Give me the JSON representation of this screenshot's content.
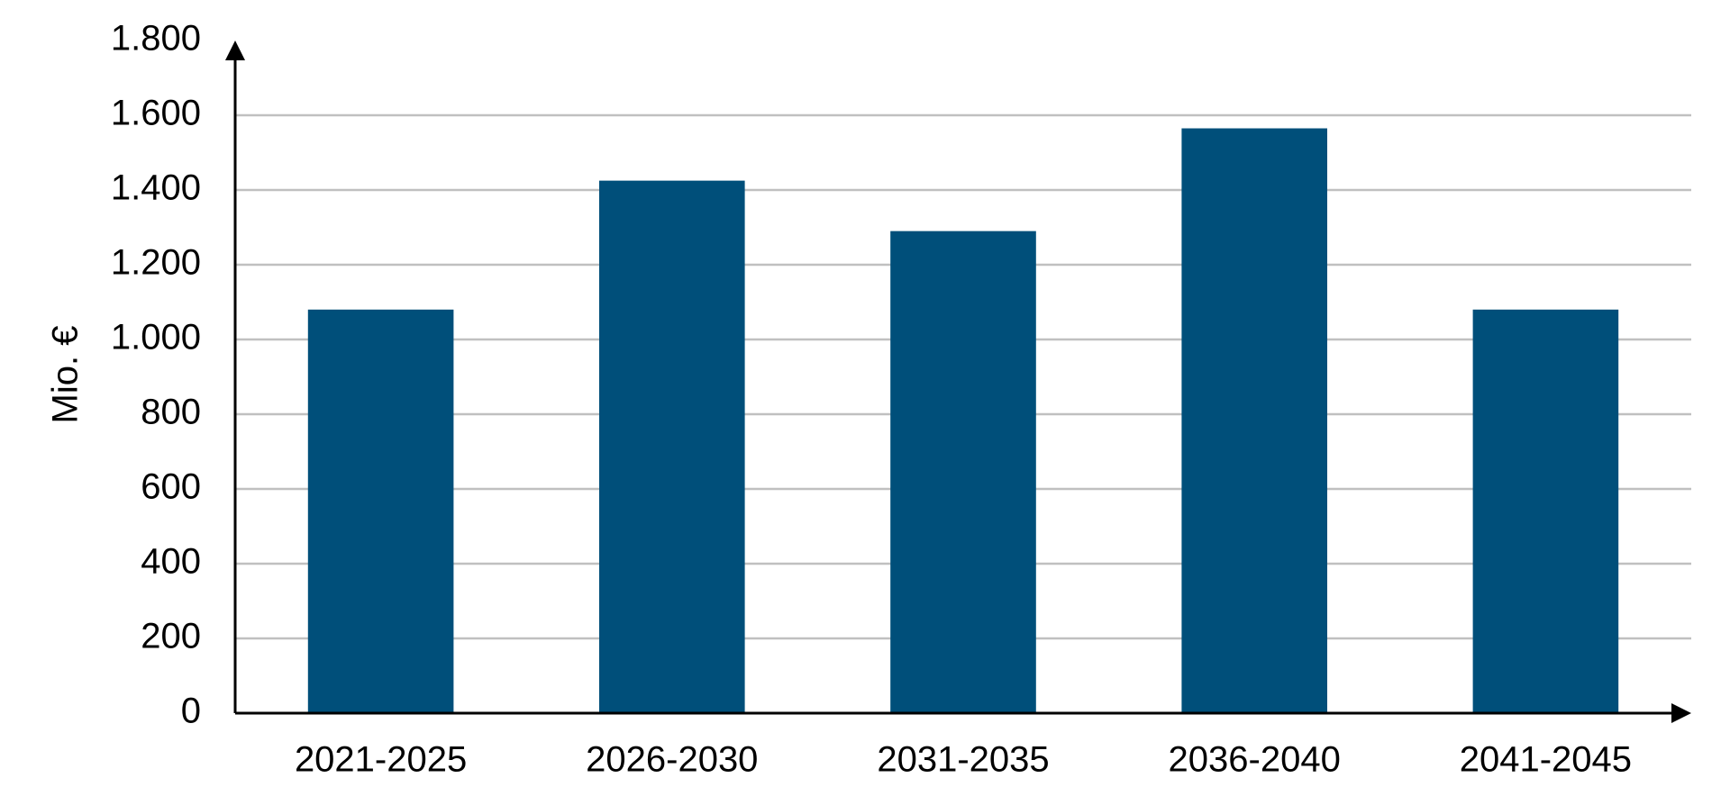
{
  "chart_data": {
    "type": "bar",
    "y_label": "Mio. €",
    "categories": [
      "2021-2025",
      "2026-2030",
      "2031-2035",
      "2036-2040",
      "2041-2045"
    ],
    "values": [
      1080,
      1425,
      1290,
      1565,
      1080
    ],
    "color": "#004f7a",
    "ylim": [
      0,
      1800
    ],
    "yticks": [
      0,
      200,
      400,
      600,
      800,
      {
        "value": 1000,
        "label": "1.000"
      },
      {
        "value": 1200,
        "label": "1.200"
      },
      {
        "value": 1400,
        "label": "1.400"
      },
      {
        "value": 1600,
        "label": "1.600"
      },
      {
        "value": 1800,
        "label": "1.800"
      }
    ],
    "grid": true
  }
}
